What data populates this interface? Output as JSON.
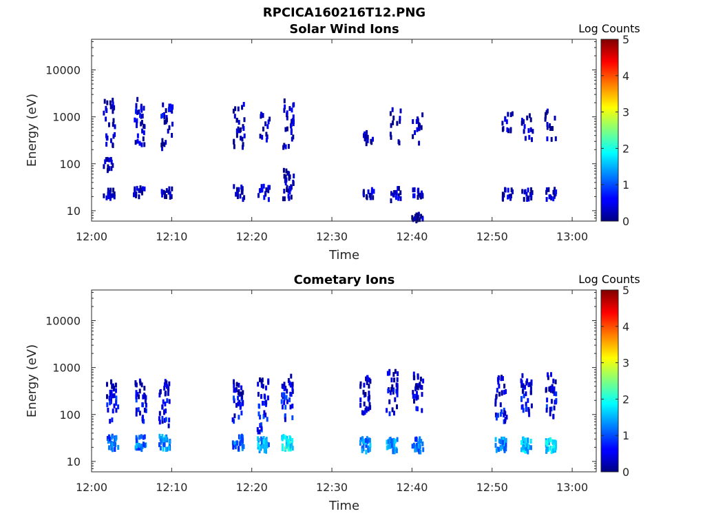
{
  "figure": {
    "title": "RPCICA160216T12.PNG"
  },
  "chart_data": [
    {
      "type": "heatmap",
      "title": "Solar Wind Ions",
      "xlabel": "Time",
      "ylabel": "Energy (eV)",
      "xticks": [
        "12:00",
        "12:10",
        "12:20",
        "12:30",
        "12:40",
        "12:50",
        "13:00"
      ],
      "xlim_minutes": [
        0,
        63
      ],
      "yscale": "log",
      "ylim": [
        6,
        45000
      ],
      "yticks": [
        {
          "value": 10,
          "label": "10"
        },
        {
          "value": 100,
          "label": "100"
        },
        {
          "value": 1000,
          "label": "1000"
        },
        {
          "value": 10000,
          "label": "10000"
        }
      ],
      "colorbar": {
        "label": "Log Counts",
        "min": 0,
        "max": 5,
        "ticks": [
          "0",
          "1",
          "2",
          "3",
          "4",
          "5"
        ],
        "colormap": "jet"
      },
      "grid": false,
      "bursts": [
        {
          "t": 2.1,
          "clusters": [
            {
              "e": 500,
              "spread": 2.5,
              "level": 0.3
            },
            {
              "e": 27,
              "spread": 1.4,
              "level": 0.3
            },
            {
              "e": 1600,
              "spread": 1.6,
              "level": 0.2
            },
            {
              "e": 120,
              "spread": 1.5,
              "level": 0.2
            }
          ]
        },
        {
          "t": 5.8,
          "clusters": [
            {
              "e": 1500,
              "spread": 1.8,
              "level": 0.4
            },
            {
              "e": 500,
              "spread": 1.8,
              "level": 0.3
            },
            {
              "e": 28,
              "spread": 1.3,
              "level": 0.3
            }
          ]
        },
        {
          "t": 9.3,
          "clusters": [
            {
              "e": 1600,
              "spread": 1.5,
              "level": 0.4
            },
            {
              "e": 500,
              "spread": 2.2,
              "level": 0.2
            },
            {
              "e": 28,
              "spread": 1.3,
              "level": 0.2
            }
          ]
        },
        {
          "t": 18.3,
          "clusters": [
            {
              "e": 1000,
              "spread": 2.2,
              "level": 0.2
            },
            {
              "e": 27,
              "spread": 1.4,
              "level": 0.3
            },
            {
              "e": 400,
              "spread": 1.8,
              "level": 0.2
            }
          ]
        },
        {
          "t": 21.4,
          "clusters": [
            {
              "e": 700,
              "spread": 2.0,
              "level": 0.3
            },
            {
              "e": 27,
              "spread": 1.4,
              "level": 0.3
            }
          ]
        },
        {
          "t": 24.5,
          "clusters": [
            {
              "e": 1500,
              "spread": 1.8,
              "level": 0.3
            },
            {
              "e": 500,
              "spread": 2.0,
              "level": 0.2
            },
            {
              "e": 60,
              "spread": 1.5,
              "level": 0.3
            },
            {
              "e": 28,
              "spread": 1.4,
              "level": 0.35
            }
          ]
        },
        {
          "t": 34.5,
          "clusters": [
            {
              "e": 400,
              "spread": 1.4,
              "level": 0.2
            },
            {
              "e": 25,
              "spread": 1.3,
              "level": 0.3
            }
          ]
        },
        {
          "t": 37.8,
          "clusters": [
            {
              "e": 700,
              "spread": 2.3,
              "level": 0.2
            },
            {
              "e": 25,
              "spread": 1.4,
              "level": 0.3
            }
          ]
        },
        {
          "t": 40.6,
          "clusters": [
            {
              "e": 700,
              "spread": 2.3,
              "level": 0.2
            },
            {
              "e": 25,
              "spread": 1.3,
              "level": 0.35
            },
            {
              "e": 8,
              "spread": 1.2,
              "level": 0.2
            }
          ]
        },
        {
          "t": 51.8,
          "clusters": [
            {
              "e": 700,
              "spread": 2.2,
              "level": 0.2
            },
            {
              "e": 25,
              "spread": 1.3,
              "level": 0.3
            }
          ]
        },
        {
          "t": 54.3,
          "clusters": [
            {
              "e": 800,
              "spread": 2.2,
              "level": 0.25
            },
            {
              "e": 25,
              "spread": 1.3,
              "level": 0.3
            }
          ]
        },
        {
          "t": 57.2,
          "clusters": [
            {
              "e": 800,
              "spread": 2.2,
              "level": 0.25
            },
            {
              "e": 25,
              "spread": 1.3,
              "level": 0.3
            }
          ]
        }
      ]
    },
    {
      "type": "heatmap",
      "title": "Cometary Ions",
      "xlabel": "Time",
      "ylabel": "Energy (eV)",
      "xticks": [
        "12:00",
        "12:10",
        "12:20",
        "12:30",
        "12:40",
        "12:50",
        "13:00"
      ],
      "xlim_minutes": [
        0,
        63
      ],
      "yscale": "log",
      "ylim": [
        6,
        45000
      ],
      "yticks": [
        {
          "value": 10,
          "label": "10"
        },
        {
          "value": 100,
          "label": "100"
        },
        {
          "value": 1000,
          "label": "1000"
        },
        {
          "value": 10000,
          "label": "10000"
        }
      ],
      "colorbar": {
        "label": "Log Counts",
        "min": 0,
        "max": 5,
        "ticks": [
          "0",
          "1",
          "2",
          "3",
          "4",
          "5"
        ],
        "colormap": "jet"
      },
      "grid": false,
      "bursts": [
        {
          "t": 2.5,
          "clusters": [
            {
              "e": 28,
              "spread": 1.4,
              "level": 1.1
            },
            {
              "e": 150,
              "spread": 1.9,
              "level": 0.6
            },
            {
              "e": 400,
              "spread": 1.5,
              "level": 0.3
            }
          ]
        },
        {
          "t": 6.0,
          "clusters": [
            {
              "e": 28,
              "spread": 1.4,
              "level": 1.2
            },
            {
              "e": 150,
              "spread": 1.9,
              "level": 0.6
            },
            {
              "e": 400,
              "spread": 1.5,
              "level": 0.3
            }
          ]
        },
        {
          "t": 9.0,
          "clusters": [
            {
              "e": 28,
              "spread": 1.4,
              "level": 1.3
            },
            {
              "e": 120,
              "spread": 1.9,
              "level": 0.6
            },
            {
              "e": 400,
              "spread": 1.5,
              "level": 0.3
            }
          ]
        },
        {
          "t": 18.2,
          "clusters": [
            {
              "e": 28,
              "spread": 1.4,
              "level": 1.1
            },
            {
              "e": 150,
              "spread": 2.1,
              "level": 0.6
            },
            {
              "e": 450,
              "spread": 1.5,
              "level": 0.3
            }
          ]
        },
        {
          "t": 21.3,
          "clusters": [
            {
              "e": 25,
              "spread": 1.4,
              "level": 1.4
            },
            {
              "e": 100,
              "spread": 2.1,
              "level": 0.7
            },
            {
              "e": 400,
              "spread": 1.6,
              "level": 0.3
            }
          ]
        },
        {
          "t": 24.3,
          "clusters": [
            {
              "e": 28,
              "spread": 1.4,
              "level": 1.8
            },
            {
              "e": 150,
              "spread": 2.1,
              "level": 0.7
            },
            {
              "e": 500,
              "spread": 1.6,
              "level": 0.3
            }
          ]
        },
        {
          "t": 34.0,
          "clusters": [
            {
              "e": 25,
              "spread": 1.4,
              "level": 1.3
            },
            {
              "e": 150,
              "spread": 2.0,
              "level": 0.5
            },
            {
              "e": 450,
              "spread": 1.6,
              "level": 0.3
            }
          ]
        },
        {
          "t": 37.4,
          "clusters": [
            {
              "e": 25,
              "spread": 1.4,
              "level": 1.3
            },
            {
              "e": 200,
              "spread": 2.0,
              "level": 0.5
            },
            {
              "e": 600,
              "spread": 1.6,
              "level": 0.3
            }
          ]
        },
        {
          "t": 40.6,
          "clusters": [
            {
              "e": 25,
              "spread": 1.4,
              "level": 1.2
            },
            {
              "e": 250,
              "spread": 1.9,
              "level": 0.4
            },
            {
              "e": 600,
              "spread": 1.5,
              "level": 0.3
            }
          ]
        },
        {
          "t": 51.0,
          "clusters": [
            {
              "e": 25,
              "spread": 1.4,
              "level": 1.3
            },
            {
              "e": 150,
              "spread": 2.0,
              "level": 0.6
            },
            {
              "e": 450,
              "spread": 1.6,
              "level": 0.3
            }
          ]
        },
        {
          "t": 54.2,
          "clusters": [
            {
              "e": 25,
              "spread": 1.4,
              "level": 1.5
            },
            {
              "e": 200,
              "spread": 2.0,
              "level": 0.6
            },
            {
              "e": 500,
              "spread": 1.6,
              "level": 0.3
            }
          ]
        },
        {
          "t": 57.2,
          "clusters": [
            {
              "e": 25,
              "spread": 1.4,
              "level": 1.6
            },
            {
              "e": 200,
              "spread": 2.0,
              "level": 0.6
            },
            {
              "e": 500,
              "spread": 1.6,
              "level": 0.3
            }
          ]
        }
      ]
    }
  ]
}
